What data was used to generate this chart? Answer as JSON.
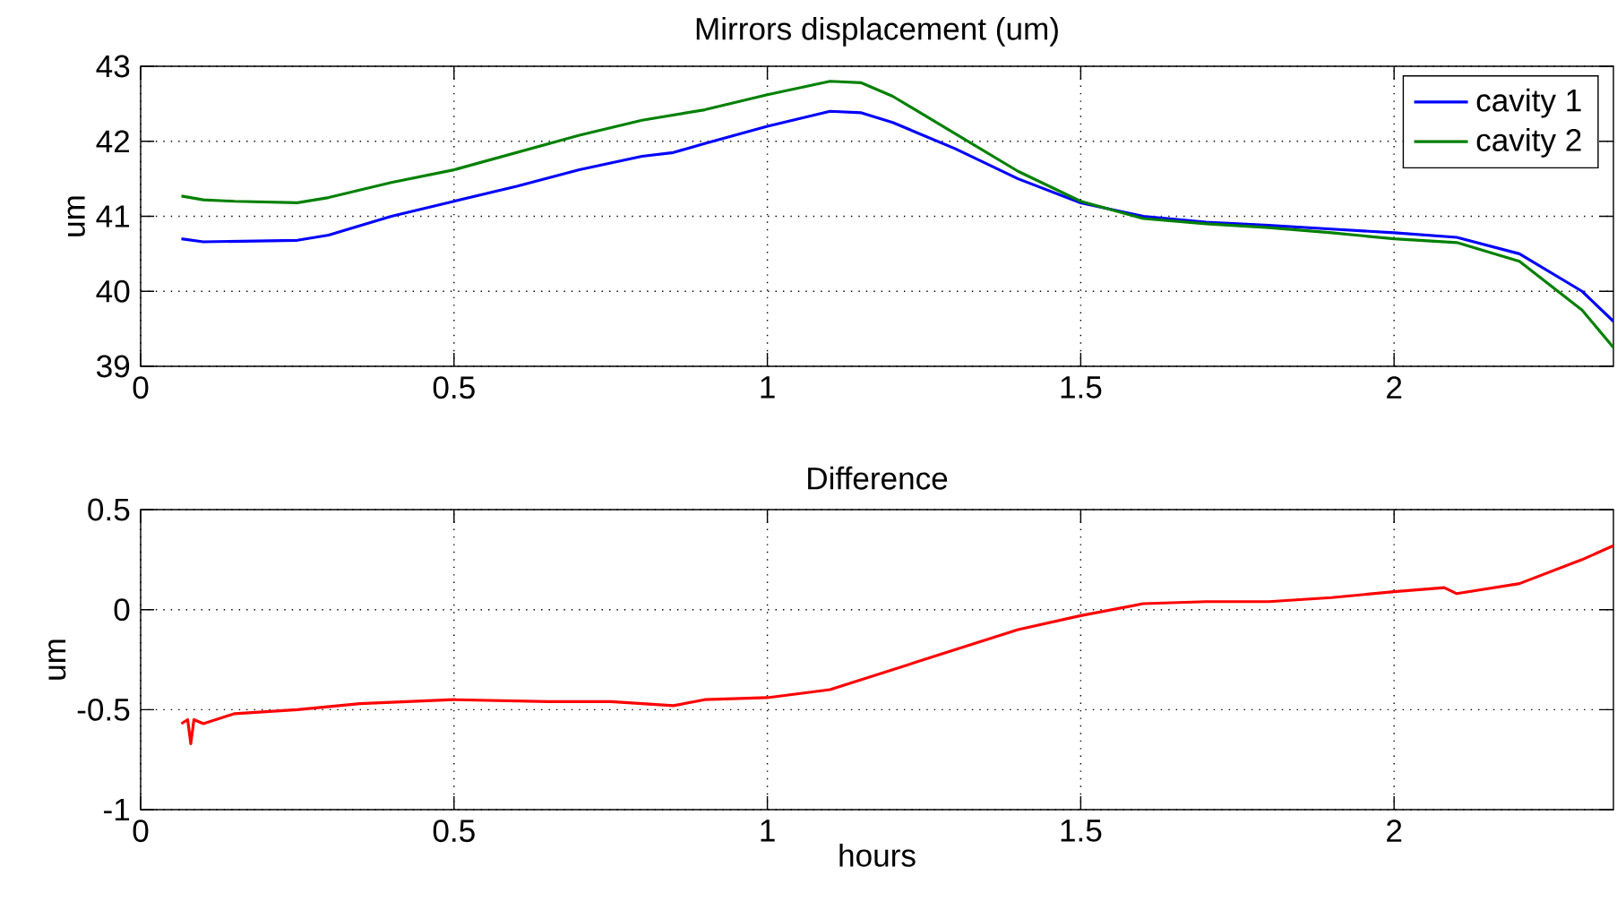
{
  "chart_data": [
    {
      "type": "line",
      "title": "Mirrors displacement (um)",
      "ylabel": "um",
      "xlim": [
        0,
        2.35
      ],
      "ylim": [
        39,
        43
      ],
      "xticks": [
        0,
        0.5,
        1,
        1.5,
        2
      ],
      "yticks": [
        39,
        40,
        41,
        42,
        43
      ],
      "grid": true,
      "legend": "top right",
      "series": [
        {
          "name": "cavity 1",
          "color": "#0000ff",
          "x": [
            0.065,
            0.1,
            0.25,
            0.3,
            0.4,
            0.5,
            0.6,
            0.7,
            0.8,
            0.85,
            0.9,
            1.0,
            1.1,
            1.15,
            1.2,
            1.3,
            1.4,
            1.5,
            1.6,
            1.7,
            1.8,
            1.9,
            2.0,
            2.1,
            2.2,
            2.3,
            2.35
          ],
          "values": [
            40.7,
            40.66,
            40.68,
            40.75,
            41.0,
            41.2,
            41.4,
            41.62,
            41.8,
            41.85,
            41.97,
            42.2,
            42.4,
            42.38,
            42.25,
            41.9,
            41.5,
            41.18,
            41.0,
            40.92,
            40.88,
            40.83,
            40.78,
            40.72,
            40.5,
            40.0,
            39.6
          ]
        },
        {
          "name": "cavity 2",
          "color": "#008000",
          "x": [
            0.065,
            0.1,
            0.15,
            0.25,
            0.3,
            0.4,
            0.5,
            0.6,
            0.7,
            0.8,
            0.9,
            1.0,
            1.1,
            1.15,
            1.2,
            1.3,
            1.4,
            1.5,
            1.6,
            1.7,
            1.8,
            1.9,
            2.0,
            2.1,
            2.2,
            2.3,
            2.35
          ],
          "values": [
            41.27,
            41.22,
            41.2,
            41.18,
            41.25,
            41.45,
            41.62,
            41.85,
            42.08,
            42.28,
            42.42,
            42.62,
            42.8,
            42.78,
            42.6,
            42.1,
            41.6,
            41.2,
            40.97,
            40.9,
            40.85,
            40.78,
            40.7,
            40.65,
            40.4,
            39.75,
            39.25
          ]
        }
      ]
    },
    {
      "type": "line",
      "title": "Difference",
      "xlabel": "hours",
      "ylabel": "um",
      "xlim": [
        0,
        2.35
      ],
      "ylim": [
        -1,
        0.5
      ],
      "xticks": [
        0,
        0.5,
        1,
        1.5,
        2
      ],
      "yticks": [
        -1,
        -0.5,
        0,
        0.5
      ],
      "grid": true,
      "series": [
        {
          "color": "#ff0000",
          "x": [
            0.065,
            0.075,
            0.08,
            0.085,
            0.1,
            0.15,
            0.25,
            0.35,
            0.5,
            0.65,
            0.75,
            0.85,
            0.9,
            1.0,
            1.1,
            1.2,
            1.3,
            1.4,
            1.5,
            1.6,
            1.7,
            1.8,
            1.9,
            2.0,
            2.08,
            2.1,
            2.2,
            2.3,
            2.35
          ],
          "values": [
            -0.57,
            -0.55,
            -0.67,
            -0.55,
            -0.57,
            -0.52,
            -0.5,
            -0.47,
            -0.45,
            -0.46,
            -0.46,
            -0.48,
            -0.45,
            -0.44,
            -0.4,
            -0.3,
            -0.2,
            -0.1,
            -0.03,
            0.03,
            0.04,
            0.04,
            0.06,
            0.09,
            0.11,
            0.08,
            0.13,
            0.25,
            0.32
          ]
        }
      ]
    }
  ]
}
